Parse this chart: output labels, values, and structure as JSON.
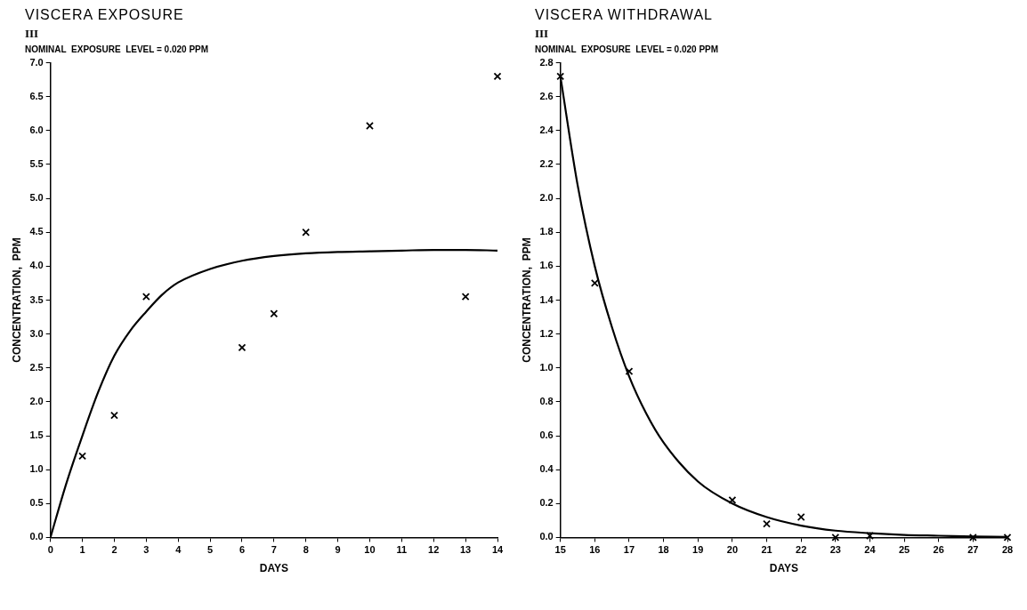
{
  "chart_data": [
    {
      "type": "scatter",
      "title": "VISCERA    EXPOSURE",
      "subtitle": "III",
      "annotations": [
        "NOMINAL  EXPOSURE  LEVEL = 0.020 PPM"
      ],
      "xlabel": "DAYS",
      "ylabel": "CONCENTRATION,  PPM",
      "xlim": [
        0,
        14
      ],
      "xticks": [
        0,
        1,
        2,
        3,
        4,
        5,
        6,
        7,
        8,
        9,
        10,
        11,
        12,
        13,
        14
      ],
      "ylim": [
        0,
        7
      ],
      "yticks": [
        {
          "value": 0,
          "label": "0.0"
        },
        0.5,
        {
          "value": 1,
          "label": "1.0"
        },
        1.5,
        {
          "value": 2,
          "label": "2.0"
        },
        2.5,
        {
          "value": 3,
          "label": "3.0"
        },
        3.5,
        {
          "value": 4,
          "label": "4.0"
        },
        4.5,
        {
          "value": 5,
          "label": "5.0"
        },
        5.5,
        {
          "value": 6,
          "label": "6.0"
        },
        6.5,
        {
          "value": 7,
          "label": "7.0"
        }
      ],
      "grid": false,
      "legend": false,
      "series": [
        {
          "type": "scatter",
          "color": "#000000",
          "marker": "cross",
          "x": [
            1,
            2,
            3,
            6,
            7,
            8,
            10,
            13,
            14
          ],
          "values": [
            1.2,
            1.8,
            3.55,
            2.8,
            3.3,
            4.5,
            6.07,
            3.55,
            6.8
          ]
        },
        {
          "type": "line",
          "color": "#000000",
          "marker": "none",
          "line_style": "solid",
          "x": [
            0,
            0.5,
            1,
            1.5,
            2,
            2.5,
            3,
            3.5,
            4,
            5,
            6,
            7,
            8,
            9,
            10,
            11,
            12,
            13,
            14
          ],
          "values": [
            0,
            0.8,
            1.5,
            2.15,
            2.68,
            3.05,
            3.33,
            3.58,
            3.76,
            3.96,
            4.08,
            4.15,
            4.19,
            4.21,
            4.22,
            4.23,
            4.24,
            4.24,
            4.23
          ]
        }
      ]
    },
    {
      "type": "scatter",
      "title": "VISCERA    WITHDRAWAL",
      "subtitle": "III",
      "annotations": [
        "NOMINAL  EXPOSURE  LEVEL = 0.020 PPM"
      ],
      "xlabel": "DAYS",
      "ylabel": "CONCENTRATION,  PPM",
      "xlim": [
        15,
        28
      ],
      "xticks": [
        15,
        16,
        17,
        18,
        19,
        20,
        21,
        22,
        23,
        24,
        25,
        26,
        27,
        28
      ],
      "ylim": [
        0,
        2.8
      ],
      "yticks": [
        {
          "value": 0,
          "label": "0.0"
        },
        0.2,
        0.4,
        0.6,
        0.8,
        {
          "value": 1,
          "label": "1.0"
        },
        1.2,
        1.4,
        1.6,
        1.8,
        {
          "value": 2,
          "label": "2.0"
        },
        2.2,
        2.4,
        2.6,
        2.8
      ],
      "grid": false,
      "legend": false,
      "series": [
        {
          "type": "scatter",
          "color": "#000000",
          "marker": "cross",
          "x": [
            15,
            16,
            17,
            20,
            21,
            22,
            23,
            24,
            27,
            28
          ],
          "values": [
            2.72,
            1.5,
            0.98,
            0.22,
            0.08,
            0.12,
            0,
            0.01,
            0,
            0
          ]
        },
        {
          "type": "line",
          "color": "#000000",
          "marker": "none",
          "line_style": "solid",
          "x": [
            15,
            15.5,
            16,
            16.5,
            17,
            17.5,
            18,
            19,
            20,
            21,
            22,
            23,
            24,
            25,
            26,
            27,
            28
          ],
          "values": [
            2.72,
            2.08,
            1.6,
            1.24,
            0.95,
            0.73,
            0.56,
            0.33,
            0.2,
            0.12,
            0.07,
            0.04,
            0.025,
            0.015,
            0.01,
            0.005,
            0.003
          ]
        }
      ]
    }
  ]
}
